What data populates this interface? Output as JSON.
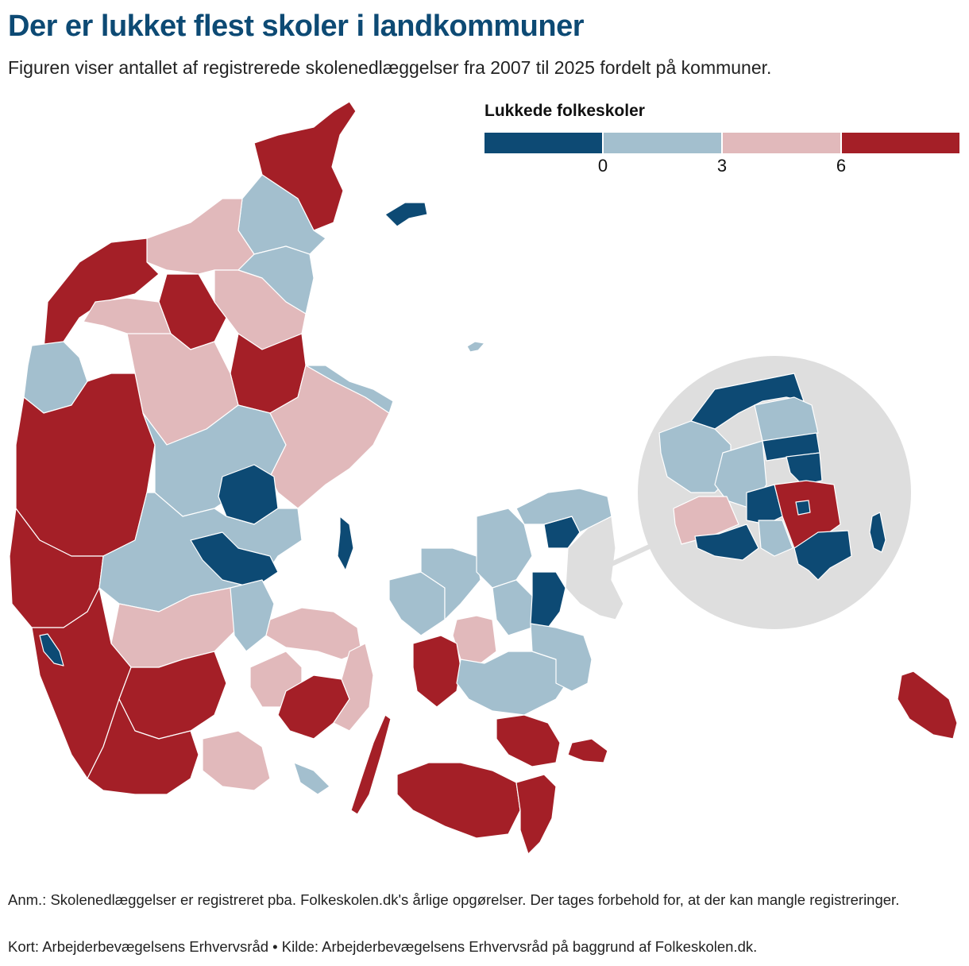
{
  "title": "Der er lukket flest skoler i landkommuner",
  "subtitle": "Figuren viser antallet af registrerede skolenedlæggelser fra 2007 til 2025 fordelt på kommuner.",
  "legend": {
    "title": "Lukkede folkeskoler",
    "ticks": [
      "0",
      "3",
      "6"
    ],
    "colors": [
      "#0d4a74",
      "#a3bfce",
      "#e1b9bb",
      "#a41f27"
    ]
  },
  "map_data": {
    "type": "choropleth",
    "region": "Danmark",
    "classes": [
      {
        "range": "0",
        "color": "#0d4a74"
      },
      {
        "range": "1–3",
        "color": "#a3bfce"
      },
      {
        "range": "4–6",
        "color": "#e1b9bb"
      },
      {
        "range": "over 6",
        "color": "#a41f27"
      }
    ],
    "inset": "Hovedstadsområdet"
  },
  "note": "Anm.: Skolenedlæggelser er registreret pba. Folkeskolen.dk's årlige opgørelser. Der tages forbehold for, at der kan mangle registreringer.",
  "source": "Kort: Arbejderbevægelsens Erhvervsråd • Kilde: Arbejderbevægelsens Erhvervsråd på baggrund af Folkeskolen.dk."
}
